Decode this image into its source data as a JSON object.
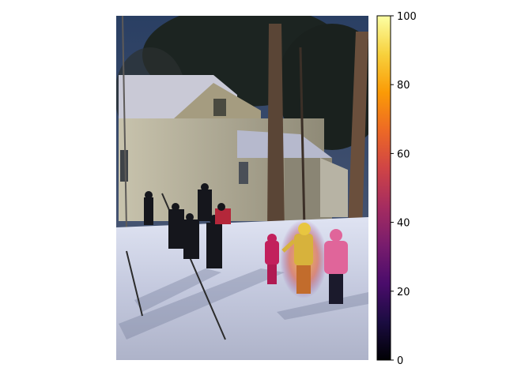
{
  "figure": {
    "image_subject": "winter scene with skiers",
    "colormap": "inferno",
    "overlay_highlight": "child skier in yellow highlight"
  },
  "colorbar": {
    "min": 0,
    "max": 100,
    "ticks": [
      {
        "value": 0,
        "label": "0"
      },
      {
        "value": 20,
        "label": "20"
      },
      {
        "value": 40,
        "label": "40"
      },
      {
        "value": 60,
        "label": "60"
      },
      {
        "value": 80,
        "label": "80"
      },
      {
        "value": 100,
        "label": "100"
      }
    ],
    "colors": [
      "#000004",
      "#1b0c41",
      "#4a0c6b",
      "#781c6d",
      "#a52c60",
      "#cf4446",
      "#ed6925",
      "#fb9b06",
      "#f7d13d",
      "#fcffa4"
    ]
  }
}
